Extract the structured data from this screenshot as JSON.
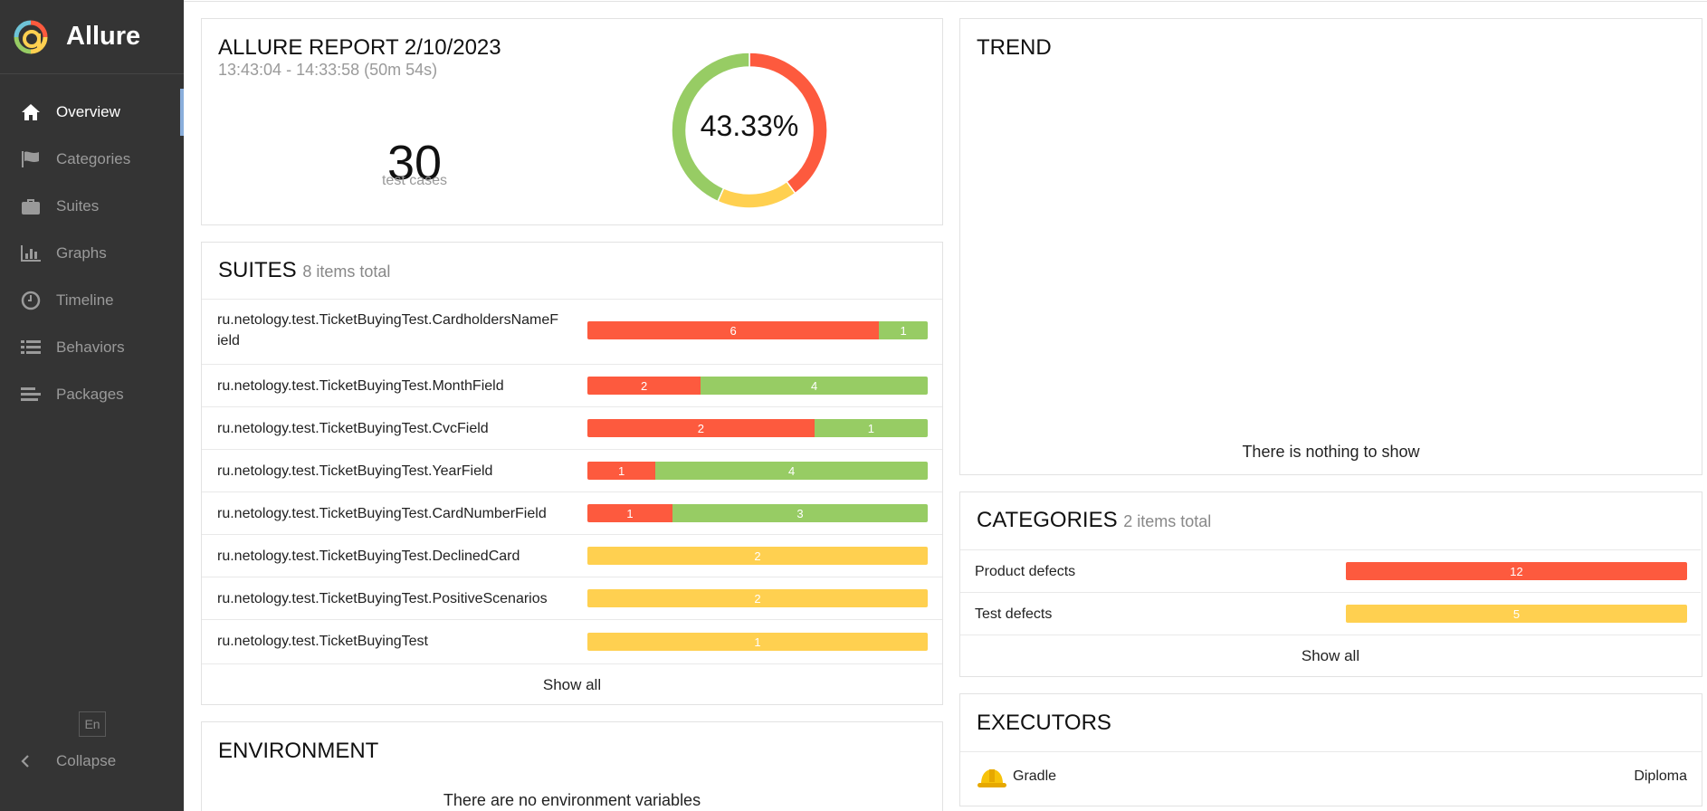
{
  "sidebar": {
    "brand": "Allure",
    "items": [
      {
        "label": "Overview",
        "icon": "home-icon",
        "active": true
      },
      {
        "label": "Categories",
        "icon": "flag-icon"
      },
      {
        "label": "Suites",
        "icon": "briefcase-icon"
      },
      {
        "label": "Graphs",
        "icon": "bar-chart-icon"
      },
      {
        "label": "Timeline",
        "icon": "clock-icon"
      },
      {
        "label": "Behaviors",
        "icon": "list-icon"
      },
      {
        "label": "Packages",
        "icon": "align-left-icon"
      }
    ],
    "language": "En",
    "collapse": "Collapse"
  },
  "summary": {
    "title": "ALLURE REPORT 2/10/2023",
    "date_range": "13:43:04 - 14:33:58 (50m 54s)",
    "test_count": "30",
    "test_count_label": "test cases",
    "success_rate": "43.33%",
    "donut": {
      "failed": 12,
      "broken": 5,
      "passed": 13
    }
  },
  "suites": {
    "title": "SUITES",
    "subtitle": "8 items total",
    "items": [
      {
        "name": "ru.netology.test.TicketBuyingTest.CardholdersNameField",
        "failed": 6,
        "passed": 1,
        "broken": 0
      },
      {
        "name": "ru.netology.test.TicketBuyingTest.MonthField",
        "failed": 2,
        "passed": 4,
        "broken": 0
      },
      {
        "name": "ru.netology.test.TicketBuyingTest.CvcField",
        "failed": 2,
        "passed": 1,
        "broken": 0
      },
      {
        "name": "ru.netology.test.TicketBuyingTest.YearField",
        "failed": 1,
        "passed": 4,
        "broken": 0
      },
      {
        "name": "ru.netology.test.TicketBuyingTest.CardNumberField",
        "failed": 1,
        "passed": 3,
        "broken": 0
      },
      {
        "name": "ru.netology.test.TicketBuyingTest.DeclinedCard",
        "failed": 0,
        "passed": 0,
        "broken": 2
      },
      {
        "name": "ru.netology.test.TicketBuyingTest.PositiveScenarios",
        "failed": 0,
        "passed": 0,
        "broken": 2
      },
      {
        "name": "ru.netology.test.TicketBuyingTest",
        "failed": 0,
        "passed": 0,
        "broken": 1
      }
    ],
    "show_all": "Show all"
  },
  "environment": {
    "title": "ENVIRONMENT",
    "empty": "There are no environment variables"
  },
  "trend": {
    "title": "TREND",
    "empty": "There is nothing to show"
  },
  "categories": {
    "title": "CATEGORIES",
    "subtitle": "2 items total",
    "items": [
      {
        "name": "Product defects",
        "value": 12,
        "status": "failed"
      },
      {
        "name": "Test defects",
        "value": 5,
        "status": "broken"
      }
    ],
    "show_all": "Show all"
  },
  "executors": {
    "title": "EXECUTORS",
    "items": [
      {
        "name": "Gradle",
        "build": "Diploma",
        "icon": "hard-hat-icon"
      }
    ]
  },
  "colors": {
    "failed": "#fd5a3e",
    "passed": "#97cc64",
    "broken": "#ffd050",
    "sidebar": "#343434",
    "active_marker": "#8aaedb"
  }
}
